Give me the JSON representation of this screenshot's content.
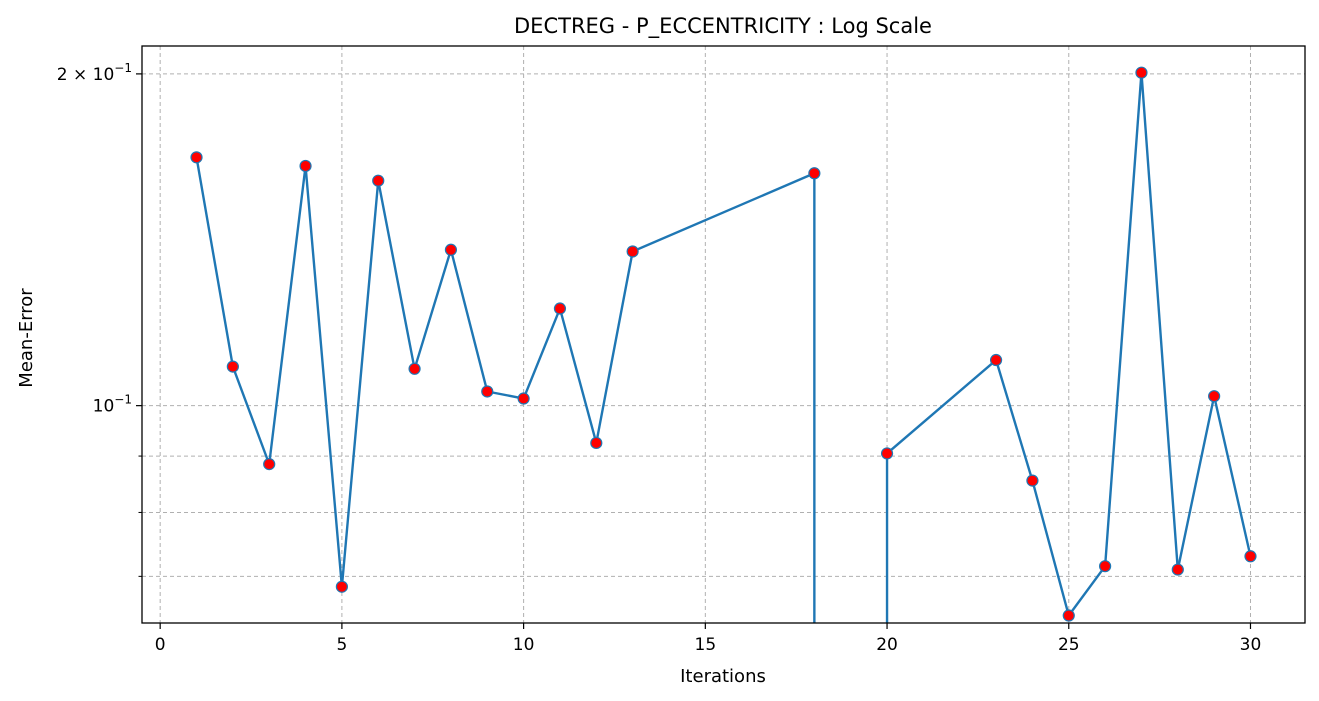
{
  "chart_data": {
    "type": "line",
    "title": "DECTREG - P_ECCENTRICITY : Log Scale",
    "xlabel": "Iterations",
    "ylabel": "Mean-Error",
    "x_scale": "linear",
    "y_scale": "log",
    "xlim": [
      -0.5,
      31.5
    ],
    "ylim": [
      0.0635,
      0.212
    ],
    "grid": true,
    "x_ticks": [
      {
        "value": 0,
        "label": "0"
      },
      {
        "value": 5,
        "label": "5"
      },
      {
        "value": 10,
        "label": "10"
      },
      {
        "value": 15,
        "label": "15"
      },
      {
        "value": 20,
        "label": "20"
      },
      {
        "value": 25,
        "label": "25"
      },
      {
        "value": 30,
        "label": "30"
      }
    ],
    "y_major_ticks": [
      {
        "value": 0.1,
        "label": "10",
        "exp": "−1",
        "mant": ""
      },
      {
        "value": 0.2,
        "label": "10",
        "exp": "−1",
        "mant": "2 × "
      }
    ],
    "y_minor_ticks": [
      0.07,
      0.08,
      0.09
    ],
    "series": [
      {
        "line_color": "#1f77b4",
        "marker_color": "#ff0000",
        "marker_edge_color": "#1f77b4",
        "points": [
          {
            "x": 1,
            "y": 0.168
          },
          {
            "x": 2,
            "y": 0.1085
          },
          {
            "x": 3,
            "y": 0.0885
          },
          {
            "x": 4,
            "y": 0.165
          },
          {
            "x": 5,
            "y": 0.0685
          },
          {
            "x": 6,
            "y": 0.16
          },
          {
            "x": 7,
            "y": 0.108
          },
          {
            "x": 8,
            "y": 0.1385
          },
          {
            "x": 9,
            "y": 0.103
          },
          {
            "x": 10,
            "y": 0.1015
          },
          {
            "x": 11,
            "y": 0.1225
          },
          {
            "x": 12,
            "y": 0.0925
          },
          {
            "x": 13,
            "y": 0.138
          },
          {
            "x": 18,
            "y": 0.1625
          },
          {
            "x": 18,
            "y": null
          },
          {
            "x": 20,
            "y": null
          },
          {
            "x": 20,
            "y": 0.0905
          },
          {
            "x": 23,
            "y": 0.11
          },
          {
            "x": 24,
            "y": 0.0855
          },
          {
            "x": 25,
            "y": 0.0645
          },
          {
            "x": 26,
            "y": 0.0715
          },
          {
            "x": 27,
            "y": 0.2005
          },
          {
            "x": 28,
            "y": 0.071
          },
          {
            "x": 29,
            "y": 0.102
          },
          {
            "x": 30,
            "y": 0.073
          }
        ]
      }
    ]
  }
}
